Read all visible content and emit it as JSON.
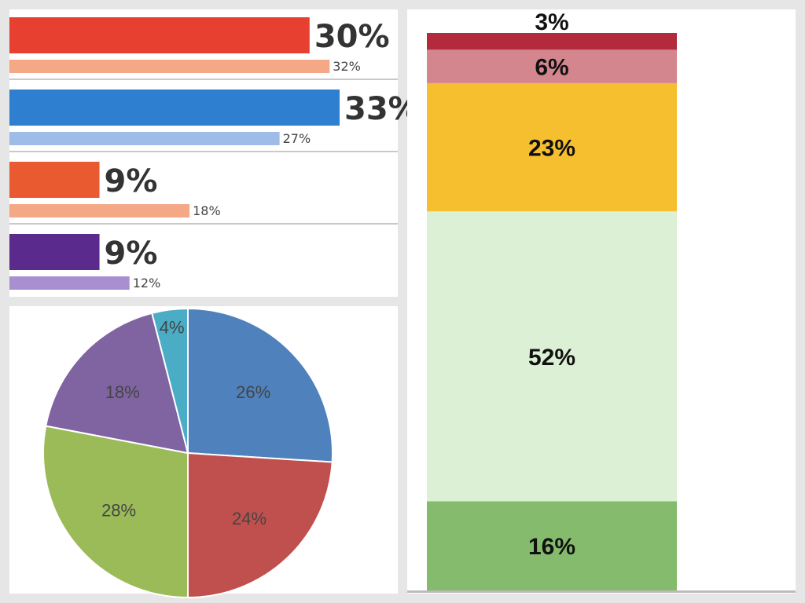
{
  "chart_data": [
    {
      "type": "bar",
      "orientation": "horizontal",
      "groups": [
        {
          "primary": {
            "value": 30,
            "label": "30%",
            "color": "#e84030"
          },
          "secondary": {
            "value": 32,
            "label": "32%",
            "color": "#f4a886"
          }
        },
        {
          "primary": {
            "value": 33,
            "label": "33%",
            "color": "#2e7fd0"
          },
          "secondary": {
            "value": 27,
            "label": "27%",
            "color": "#9dbde8"
          }
        },
        {
          "primary": {
            "value": 9,
            "label": "9%",
            "color": "#ea5a30"
          },
          "secondary": {
            "value": 18,
            "label": "18%",
            "color": "#f4a886"
          }
        },
        {
          "primary": {
            "value": 9,
            "label": "9%",
            "color": "#5a2a8c"
          },
          "secondary": {
            "value": 12,
            "label": "12%",
            "color": "#a98fcf"
          }
        }
      ],
      "divider_color": "#c9c9c9"
    },
    {
      "type": "pie",
      "start": "top",
      "direction": "clockwise",
      "slices": [
        {
          "label": "26%",
          "value": 26,
          "color": "#4f81bd"
        },
        {
          "label": "24%",
          "value": 24,
          "color": "#c0504d"
        },
        {
          "label": "28%",
          "value": 28,
          "color": "#9bbb59"
        },
        {
          "label": "18%",
          "value": 18,
          "color": "#8064a2"
        },
        {
          "label": "4%",
          "value": 4,
          "color": "#4bacc6"
        }
      ]
    },
    {
      "type": "bar",
      "stacked": true,
      "segments_bottom_to_top": [
        {
          "label": "16%",
          "value": 16,
          "color": "#85bb6c"
        },
        {
          "label": "52%",
          "value": 52,
          "color": "#dcf0d6"
        },
        {
          "label": "23%",
          "value": 23,
          "color": "#f6bf2f"
        },
        {
          "label": "6%",
          "value": 6,
          "color": "#d4868e"
        },
        {
          "label": "3%",
          "value": 3,
          "color": "#b32a3c"
        }
      ]
    }
  ]
}
